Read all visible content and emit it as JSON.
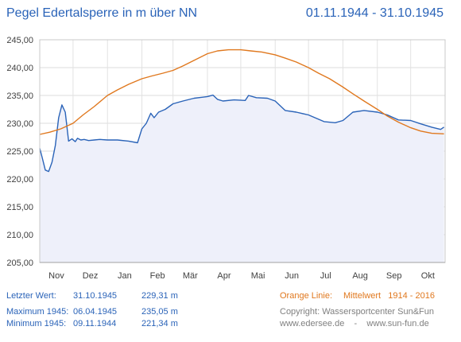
{
  "header": {
    "title": "Pegel Edertalsperre in m über NN",
    "date_range": "01.11.1944 - 31.10.1945"
  },
  "chart_data": {
    "type": "line",
    "x_tick_labels": [
      "Nov",
      "Dez",
      "Jan",
      "Feb",
      "Mär",
      "Apr",
      "Mai",
      "Jun",
      "Jul",
      "Aug",
      "Sep",
      "Okt"
    ],
    "ylim": [
      205,
      245
    ],
    "y_ticks": [
      "205,00",
      "210,00",
      "215,00",
      "220,00",
      "225,00",
      "230,00",
      "235,00",
      "240,00",
      "245,00"
    ],
    "grid": true,
    "series": [
      {
        "color": "#2a63b8",
        "fill": "#eef0fa",
        "x": [
          "1944-11-01",
          "1944-11-03",
          "1944-11-06",
          "1944-11-09",
          "1944-11-12",
          "1944-11-15",
          "1944-11-18",
          "1944-11-21",
          "1944-11-24",
          "1944-11-27",
          "1944-11-30",
          "1944-12-03",
          "1944-12-05",
          "1944-12-08",
          "1944-12-11",
          "1944-12-15",
          "1944-12-20",
          "1944-12-25",
          "1945-01-01",
          "1945-01-10",
          "1945-01-20",
          "1945-01-28",
          "1945-02-01",
          "1945-02-05",
          "1945-02-09",
          "1945-02-12",
          "1945-02-16",
          "1945-02-22",
          "1945-03-01",
          "1945-03-10",
          "1945-03-20",
          "1945-04-01",
          "1945-04-06",
          "1945-04-10",
          "1945-04-15",
          "1945-04-25",
          "1945-05-05",
          "1945-05-08",
          "1945-05-15",
          "1945-05-25",
          "1945-06-01",
          "1945-06-10",
          "1945-06-20",
          "1945-07-01",
          "1945-07-15",
          "1945-07-25",
          "1945-08-01",
          "1945-08-10",
          "1945-08-20",
          "1945-09-01",
          "1945-09-10",
          "1945-09-20",
          "1945-10-01",
          "1945-10-10",
          "1945-10-20",
          "1945-10-28",
          "1945-10-31"
        ],
        "y": [
          225.5,
          224.0,
          221.6,
          221.34,
          223.0,
          226.0,
          231.0,
          233.3,
          232.0,
          226.8,
          227.2,
          226.7,
          227.3,
          227.0,
          227.1,
          226.9,
          227.0,
          227.1,
          227.0,
          227.0,
          226.8,
          226.5,
          229.0,
          230.0,
          231.8,
          231.0,
          232.0,
          232.5,
          233.5,
          234.0,
          234.5,
          234.8,
          235.05,
          234.3,
          234.0,
          234.2,
          234.1,
          235.0,
          234.6,
          234.5,
          234.0,
          232.3,
          232.0,
          231.5,
          230.3,
          230.1,
          230.5,
          232.0,
          232.3,
          232.0,
          231.5,
          230.6,
          230.5,
          229.9,
          229.3,
          228.9,
          229.31
        ]
      },
      {
        "color": "#e0781e",
        "x": [
          "1944-11-01",
          "1944-11-10",
          "1944-11-20",
          "1944-12-01",
          "1944-12-10",
          "1944-12-20",
          "1945-01-01",
          "1945-01-10",
          "1945-01-20",
          "1945-02-01",
          "1945-02-10",
          "1945-02-20",
          "1945-03-01",
          "1945-03-10",
          "1945-03-20",
          "1945-04-01",
          "1945-04-10",
          "1945-04-20",
          "1945-05-01",
          "1945-05-10",
          "1945-05-20",
          "1945-06-01",
          "1945-06-10",
          "1945-06-20",
          "1945-07-01",
          "1945-07-10",
          "1945-07-20",
          "1945-08-01",
          "1945-08-10",
          "1945-08-20",
          "1945-09-01",
          "1945-09-10",
          "1945-09-20",
          "1945-10-01",
          "1945-10-10",
          "1945-10-20",
          "1945-10-31"
        ],
        "y": [
          228.0,
          228.4,
          229.0,
          230.0,
          231.5,
          233.0,
          235.0,
          236.0,
          237.0,
          238.0,
          238.5,
          239.0,
          239.5,
          240.3,
          241.3,
          242.5,
          243.0,
          243.2,
          243.2,
          243.0,
          242.8,
          242.3,
          241.7,
          241.0,
          240.0,
          239.0,
          238.0,
          236.5,
          235.3,
          234.0,
          232.5,
          231.3,
          230.2,
          229.2,
          228.6,
          228.2,
          228.1
        ]
      }
    ]
  },
  "footer": {
    "last_value_label": "Letzter Wert:",
    "last_value_date": "31.10.1945",
    "last_value": "229,31 m",
    "max_label": "Maximum 1945:",
    "max_date": "06.04.1945",
    "max_value": "235,05 m",
    "min_label": "Minimum  1945:",
    "min_date": "09.11.1944",
    "min_value": "221,34 m",
    "orange_label": "Orange Linie:",
    "orange_desc": "Mittelwert   1914 - 2016",
    "copyright": "Copyright: Wassersportcenter Sun&Fun",
    "websites": "www.edersee.de    -    www.sun-fun.de"
  }
}
